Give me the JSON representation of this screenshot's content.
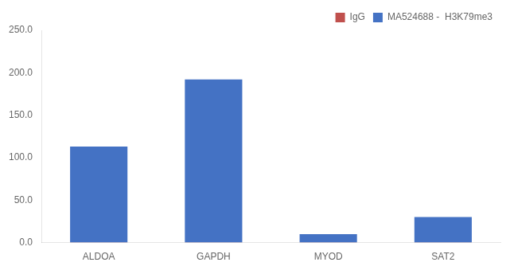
{
  "chart_data": {
    "type": "bar",
    "categories": [
      "ALDOA",
      "GAPDH",
      "MYOD",
      "SAT2"
    ],
    "series": [
      {
        "name": "MA524688 -  H3K79me3",
        "color": "#4472C4",
        "values": [
          113.0,
          192.0,
          10.0,
          30.0
        ]
      },
      {
        "name": "IgG",
        "color": "#C0504D",
        "values": [
          0.3,
          0.3,
          0.3,
          0.3
        ]
      }
    ],
    "ylim": [
      0,
      250
    ],
    "yticks": [
      {
        "value": 0,
        "label": "0.0"
      },
      {
        "value": 50,
        "label": "50.0"
      },
      {
        "value": 100,
        "label": "100.0"
      },
      {
        "value": 150,
        "label": "150.0"
      },
      {
        "value": 200,
        "label": "200.0"
      },
      {
        "value": 250,
        "label": "250.0"
      }
    ],
    "grid": false,
    "legend": "upper right"
  }
}
